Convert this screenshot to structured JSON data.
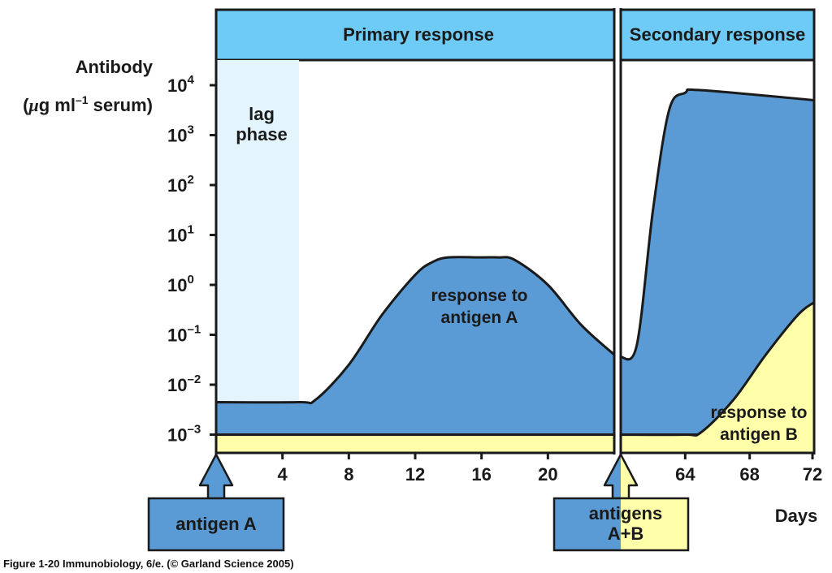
{
  "chart_data": {
    "type": "area",
    "ylabel_line1": "Antibody",
    "ylabel_line2_prefix": "(",
    "ylabel_mu": "μ",
    "ylabel_line2_mid": "g ml",
    "ylabel_exp": "–1",
    "ylabel_line2_suffix": " serum)",
    "xlabel": "Days",
    "y_scale": "log",
    "ylim_exponent": [
      -3.8,
      4.5
    ],
    "y_ticks": [
      {
        "base": "10",
        "exp": "4",
        "value": 4
      },
      {
        "base": "10",
        "exp": "3",
        "value": 3
      },
      {
        "base": "10",
        "exp": "2",
        "value": 2
      },
      {
        "base": "10",
        "exp": "1",
        "value": 1
      },
      {
        "base": "10",
        "exp": "0",
        "value": 0
      },
      {
        "base": "10",
        "exp": "–1",
        "value": -1
      },
      {
        "base": "10",
        "exp": "–2",
        "value": -2
      },
      {
        "base": "10",
        "exp": "–3",
        "value": -3
      }
    ],
    "x_axis_break": {
      "before": 24,
      "after": 60
    },
    "x_ticks_primary": [
      {
        "label": "4",
        "value": 4
      },
      {
        "label": "8",
        "value": 8
      },
      {
        "label": "12",
        "value": 12
      },
      {
        "label": "16",
        "value": 16
      },
      {
        "label": "20",
        "value": 20
      }
    ],
    "x_ticks_secondary": [
      {
        "label": "64",
        "value": 64
      },
      {
        "label": "68",
        "value": 68
      },
      {
        "label": "72",
        "value": 72
      }
    ],
    "phases": [
      {
        "label": "Primary response",
        "x_range": [
          0,
          24
        ]
      },
      {
        "label": "Secondary response",
        "x_range": [
          60,
          72
        ]
      }
    ],
    "lag_phase": {
      "line1": "lag",
      "line2": "phase",
      "x_range": [
        0,
        5
      ]
    },
    "baseline_log": -3.0,
    "series": [
      {
        "label_line1": "response to",
        "label_line2": "antigen A",
        "color": "#5b9bd5",
        "primary": [
          [
            0,
            -2.35
          ],
          [
            5,
            -2.35
          ],
          [
            6,
            -2.3
          ],
          [
            8,
            -1.6
          ],
          [
            10,
            -0.6
          ],
          [
            12,
            0.2
          ],
          [
            13,
            0.45
          ],
          [
            14,
            0.55
          ],
          [
            16,
            0.55
          ],
          [
            17,
            0.55
          ],
          [
            18,
            0.5
          ],
          [
            20,
            0.0
          ],
          [
            22,
            -0.8
          ],
          [
            24,
            -1.4
          ]
        ],
        "secondary": [
          [
            60,
            -1.45
          ],
          [
            61,
            -1.2
          ],
          [
            62,
            1.5
          ],
          [
            63,
            3.5
          ],
          [
            64,
            3.85
          ],
          [
            65,
            3.9
          ],
          [
            72,
            3.7
          ]
        ]
      },
      {
        "label_line1": "response to",
        "label_line2": "antigen B",
        "color": "#ffffaa",
        "secondary": [
          [
            60,
            -3.0
          ],
          [
            64,
            -3.0
          ],
          [
            65,
            -2.95
          ],
          [
            67,
            -2.3
          ],
          [
            69,
            -1.4
          ],
          [
            71,
            -0.6
          ],
          [
            72,
            -0.35
          ]
        ]
      }
    ],
    "injections": [
      {
        "label": "antigen A",
        "day": 0
      },
      {
        "label_line1": "antigens",
        "label_line2": "A+B",
        "day": 60
      }
    ],
    "colors": {
      "banner": "#6ecbf5",
      "lag": "#e3f4fc",
      "response_a": "#5b9bd5",
      "response_b": "#ffffaa",
      "outline": "#1a1a1a"
    }
  },
  "caption": "Figure 1-20  Immunobiology, 6/e. (© Garland Science 2005)"
}
